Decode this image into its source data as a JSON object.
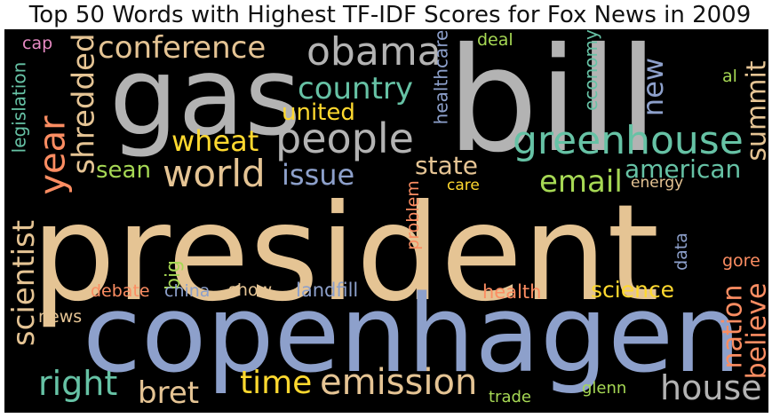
{
  "chart_data": {
    "type": "wordcloud",
    "title": "Top 50 Words with Highest TF-IDF Scores for Fox News in 2009",
    "background": "#000000",
    "palette": {
      "tan": "#e5c494",
      "blue": "#8da0cb",
      "green": "#66c2a5",
      "orange": "#fc8d62",
      "lime": "#a6d854",
      "gray": "#b3b3b3",
      "yellow": "#ffd92f",
      "pink": "#e78ac3"
    },
    "words": [
      {
        "text": "president",
        "color": "#e5c494",
        "orient": "h"
      },
      {
        "text": "copenhagen",
        "color": "#8da0cb",
        "orient": "h"
      },
      {
        "text": "bill",
        "color": "#b3b3b3",
        "orient": "h"
      },
      {
        "text": "gas",
        "color": "#b3b3b3",
        "orient": "h"
      },
      {
        "text": "greenhouse",
        "color": "#66c2a5",
        "orient": "h"
      },
      {
        "text": "people",
        "color": "#b3b3b3",
        "orient": "h"
      },
      {
        "text": "obama",
        "color": "#b3b3b3",
        "orient": "h"
      },
      {
        "text": "conference",
        "color": "#e5c494",
        "orient": "h"
      },
      {
        "text": "world",
        "color": "#e5c494",
        "orient": "h"
      },
      {
        "text": "emission",
        "color": "#e5c494",
        "orient": "h"
      },
      {
        "text": "house",
        "color": "#b3b3b3",
        "orient": "h"
      },
      {
        "text": "country",
        "color": "#66c2a5",
        "orient": "h"
      },
      {
        "text": "year",
        "color": "#fc8d62",
        "orient": "v"
      },
      {
        "text": "shredded",
        "color": "#e5c494",
        "orient": "v"
      },
      {
        "text": "scientist",
        "color": "#e5c494",
        "orient": "v"
      },
      {
        "text": "right",
        "color": "#66c2a5",
        "orient": "h"
      },
      {
        "text": "bret",
        "color": "#e5c494",
        "orient": "h"
      },
      {
        "text": "time",
        "color": "#ffd92f",
        "orient": "h"
      },
      {
        "text": "email",
        "color": "#a6d854",
        "orient": "h"
      },
      {
        "text": "wheat",
        "color": "#ffd92f",
        "orient": "h"
      },
      {
        "text": "issue",
        "color": "#8da0cb",
        "orient": "h"
      },
      {
        "text": "united",
        "color": "#ffd92f",
        "orient": "h"
      },
      {
        "text": "state",
        "color": "#e5c494",
        "orient": "h"
      },
      {
        "text": "american",
        "color": "#66c2a5",
        "orient": "h"
      },
      {
        "text": "new",
        "color": "#8da0cb",
        "orient": "v"
      },
      {
        "text": "summit",
        "color": "#e5c494",
        "orient": "v"
      },
      {
        "text": "nation",
        "color": "#fc8d62",
        "orient": "v"
      },
      {
        "text": "believe",
        "color": "#fc8d62",
        "orient": "v"
      },
      {
        "text": "science",
        "color": "#ffd92f",
        "orient": "h"
      },
      {
        "text": "sean",
        "color": "#a6d854",
        "orient": "h"
      },
      {
        "text": "big",
        "color": "#a6d854",
        "orient": "v"
      },
      {
        "text": "healthcare",
        "color": "#8da0cb",
        "orient": "v"
      },
      {
        "text": "legislation",
        "color": "#66c2a5",
        "orient": "v"
      },
      {
        "text": "economy",
        "color": "#66c2a5",
        "orient": "v"
      },
      {
        "text": "landfill",
        "color": "#8da0cb",
        "orient": "h"
      },
      {
        "text": "health",
        "color": "#fc8d62",
        "orient": "h"
      },
      {
        "text": "debate",
        "color": "#fc8d62",
        "orient": "h"
      },
      {
        "text": "china",
        "color": "#8da0cb",
        "orient": "h"
      },
      {
        "text": "show",
        "color": "#e5c494",
        "orient": "h"
      },
      {
        "text": "problem",
        "color": "#fc8d62",
        "orient": "v"
      },
      {
        "text": "care",
        "color": "#ffd92f",
        "orient": "h"
      },
      {
        "text": "energy",
        "color": "#e5c494",
        "orient": "h"
      },
      {
        "text": "deal",
        "color": "#a6d854",
        "orient": "h"
      },
      {
        "text": "cap",
        "color": "#e78ac3",
        "orient": "h"
      },
      {
        "text": "al",
        "color": "#a6d854",
        "orient": "h"
      },
      {
        "text": "gore",
        "color": "#fc8d62",
        "orient": "h"
      },
      {
        "text": "data",
        "color": "#8da0cb",
        "orient": "v"
      },
      {
        "text": "news",
        "color": "#e5c494",
        "orient": "h"
      },
      {
        "text": "trade",
        "color": "#a6d854",
        "orient": "h"
      },
      {
        "text": "glenn",
        "color": "#a6d854",
        "orient": "h"
      }
    ]
  }
}
